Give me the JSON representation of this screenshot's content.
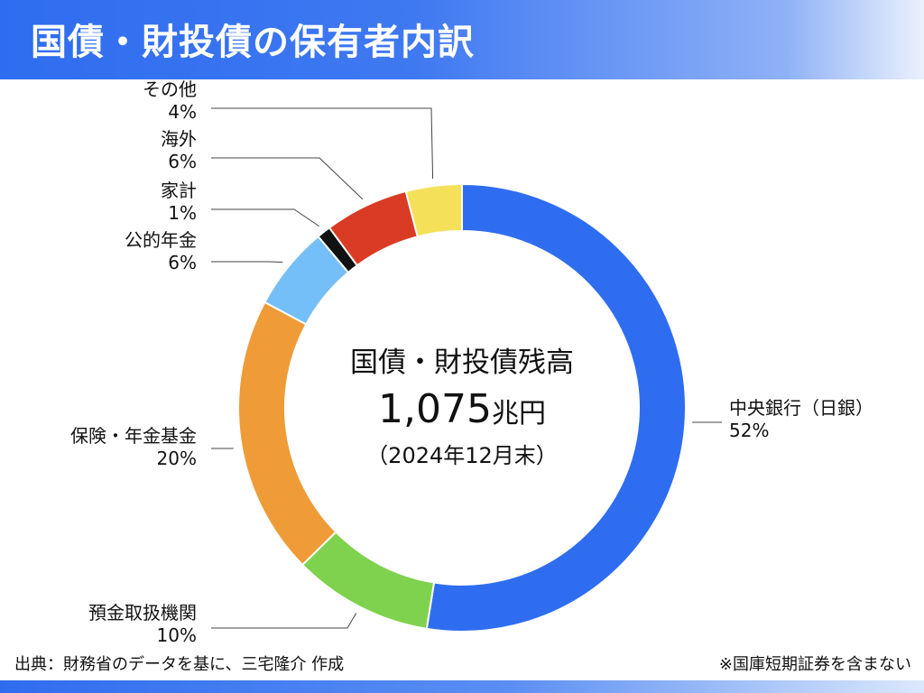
{
  "header": {
    "title": "国債・財投債の保有者内訳"
  },
  "chart_data": {
    "type": "pie",
    "center_title": "国債・財投債残高",
    "center_value": "1,075",
    "center_unit": "兆円",
    "center_date": "（2024年12月末）",
    "slices": [
      {
        "name": "中央銀行（日銀）",
        "label": "52%",
        "value": 52,
        "color": "#2f6df0",
        "name_binding": "slice-central-bank"
      },
      {
        "name": "預金取扱機関",
        "label": "10%",
        "value": 10,
        "color": "#7fd24e",
        "name_binding": "slice-deposit-institutions"
      },
      {
        "name": "保険・年金基金",
        "label": "20%",
        "value": 20,
        "color": "#ef9b38",
        "name_binding": "slice-insurance-pension"
      },
      {
        "name": "公的年金",
        "label": "6%",
        "value": 6,
        "color": "#74bff7",
        "name_binding": "slice-public-pension"
      },
      {
        "name": "家計",
        "label": "1%",
        "value": 1,
        "color": "#111111",
        "name_binding": "slice-households"
      },
      {
        "name": "海外",
        "label": "6%",
        "value": 6,
        "color": "#da3b25",
        "name_binding": "slice-overseas"
      },
      {
        "name": "その他",
        "label": "4%",
        "value": 4,
        "color": "#f5e05a",
        "name_binding": "slice-other"
      }
    ]
  },
  "footer": {
    "source": "出典：財務省のデータを基に、三宅隆介 作成",
    "note": "※国庫短期証券を含まない"
  }
}
